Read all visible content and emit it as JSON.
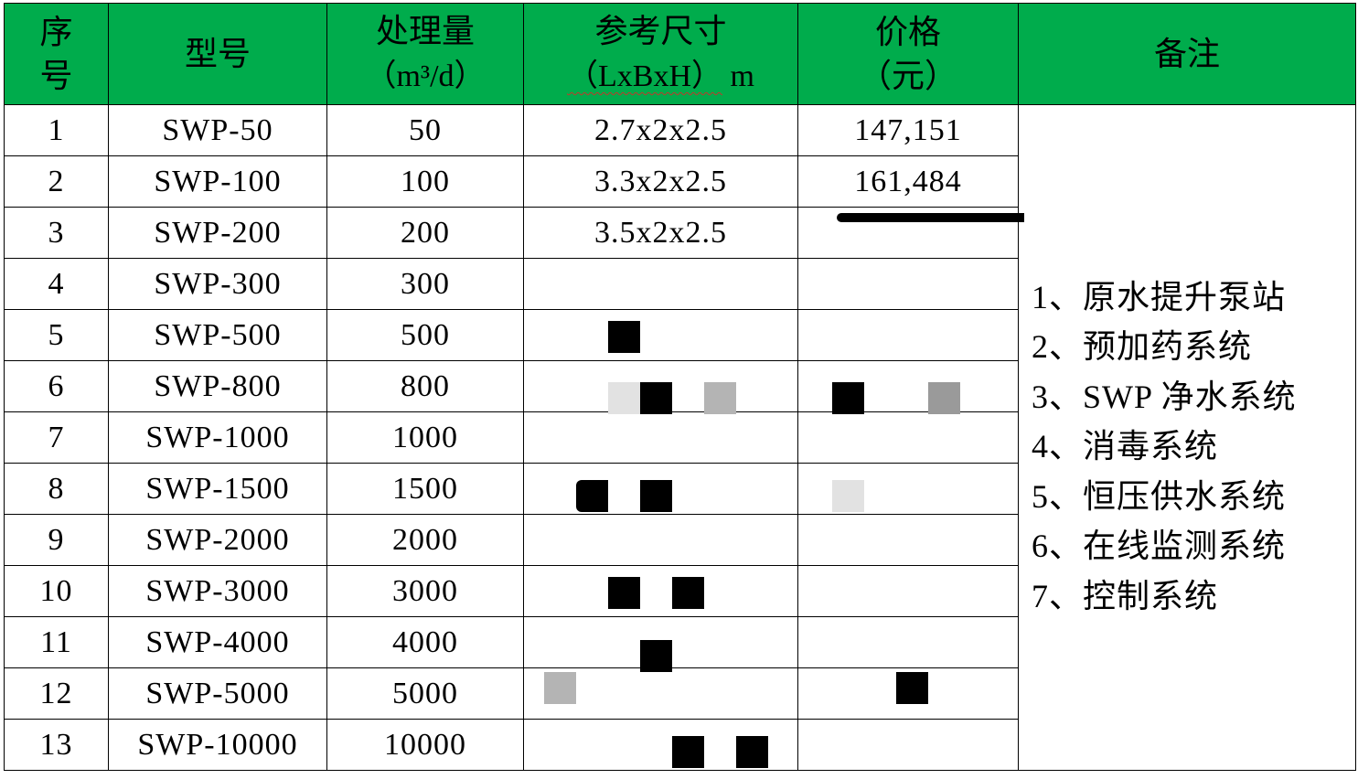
{
  "table": {
    "header_color": "#00ac4c",
    "headers": {
      "index": [
        "序",
        "号"
      ],
      "model": "型号",
      "capacity": [
        "处理量",
        "（m³/d）"
      ],
      "dimensions": [
        "参考尺寸",
        "（LxBxH）",
        " m"
      ],
      "price": [
        "价格",
        "（元）"
      ],
      "remarks": "备注"
    },
    "rows": [
      {
        "index": "1",
        "model": "SWP-50",
        "capacity": "50",
        "dimensions": "2.7x2x2.5",
        "price": "147,151"
      },
      {
        "index": "2",
        "model": "SWP-100",
        "capacity": "100",
        "dimensions": "3.3x2x2.5",
        "price": "161,484"
      },
      {
        "index": "3",
        "model": "SWP-200",
        "capacity": "200",
        "dimensions": "3.5x2x2.5",
        "price": ""
      },
      {
        "index": "4",
        "model": "SWP-300",
        "capacity": "300",
        "dimensions": "",
        "price": ""
      },
      {
        "index": "5",
        "model": "SWP-500",
        "capacity": "500",
        "dimensions": "",
        "price": ""
      },
      {
        "index": "6",
        "model": "SWP-800",
        "capacity": "800",
        "dimensions": "",
        "price": ""
      },
      {
        "index": "7",
        "model": "SWP-1000",
        "capacity": "1000",
        "dimensions": "",
        "price": ""
      },
      {
        "index": "8",
        "model": "SWP-1500",
        "capacity": "1500",
        "dimensions": "",
        "price": ""
      },
      {
        "index": "9",
        "model": "SWP-2000",
        "capacity": "2000",
        "dimensions": "",
        "price": ""
      },
      {
        "index": "10",
        "model": "SWP-3000",
        "capacity": "3000",
        "dimensions": "",
        "price": ""
      },
      {
        "index": "11",
        "model": "SWP-4000",
        "capacity": "4000",
        "dimensions": "",
        "price": ""
      },
      {
        "index": "12",
        "model": "SWP-5000",
        "capacity": "5000",
        "dimensions": "",
        "price": ""
      },
      {
        "index": "13",
        "model": "SWP-10000",
        "capacity": "10000",
        "dimensions": "",
        "price": ""
      }
    ],
    "remarks": [
      "1、原水提升泵站",
      "2、预加药系统",
      "3、SWP 净水系统",
      "4、消毒系统",
      "5、恒压供水系统",
      "6、在线监测系统",
      "7、控制系统"
    ]
  }
}
